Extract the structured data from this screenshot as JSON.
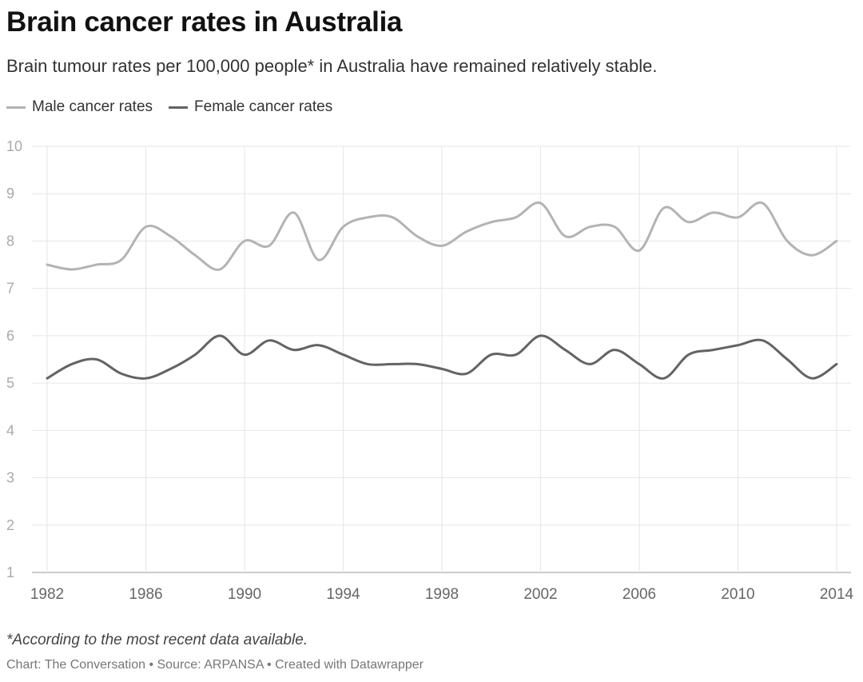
{
  "title": "Brain cancer rates in Australia",
  "subtitle": "Brain tumour rates per 100,000 people* in Australia have remained relatively stable.",
  "footnote": "*According to the most recent data available.",
  "credit": "Chart: The Conversation • Source: ARPANSA • Created with Datawrapper",
  "chart_data": {
    "type": "line",
    "title": "Brain cancer rates in Australia",
    "xlabel": "",
    "ylabel": "",
    "xlim": [
      1982,
      2014
    ],
    "ylim": [
      1,
      10
    ],
    "grid": true,
    "legend_placement": "top-left",
    "x_ticks": [
      "1982",
      "1986",
      "1990",
      "1994",
      "1998",
      "2002",
      "2006",
      "2010",
      "2014"
    ],
    "y_ticks": [
      "1",
      "2",
      "3",
      "4",
      "5",
      "6",
      "7",
      "8",
      "9",
      "10"
    ],
    "x": [
      1982,
      1983,
      1984,
      1985,
      1986,
      1987,
      1988,
      1989,
      1990,
      1991,
      1992,
      1993,
      1994,
      1995,
      1996,
      1997,
      1998,
      1999,
      2000,
      2001,
      2002,
      2003,
      2004,
      2005,
      2006,
      2007,
      2008,
      2009,
      2010,
      2011,
      2012,
      2013,
      2014
    ],
    "series": [
      {
        "name": "Male cancer rates",
        "color": "#b3b3b3",
        "values": [
          7.5,
          7.4,
          7.5,
          7.6,
          8.3,
          8.1,
          7.7,
          7.4,
          8.0,
          7.9,
          8.6,
          7.6,
          8.3,
          8.5,
          8.5,
          8.1,
          7.9,
          8.2,
          8.4,
          8.5,
          8.8,
          8.1,
          8.3,
          8.3,
          7.8,
          8.7,
          8.4,
          8.6,
          8.5,
          8.8,
          8.0,
          7.7,
          8.0
        ]
      },
      {
        "name": "Female cancer rates",
        "color": "#636363",
        "values": [
          5.1,
          5.4,
          5.5,
          5.2,
          5.1,
          5.3,
          5.6,
          6.0,
          5.6,
          5.9,
          5.7,
          5.8,
          5.6,
          5.4,
          5.4,
          5.4,
          5.3,
          5.2,
          5.6,
          5.6,
          6.0,
          5.7,
          5.4,
          5.7,
          5.4,
          5.1,
          5.6,
          5.7,
          5.8,
          5.9,
          5.5,
          5.1,
          5.4
        ]
      }
    ]
  }
}
